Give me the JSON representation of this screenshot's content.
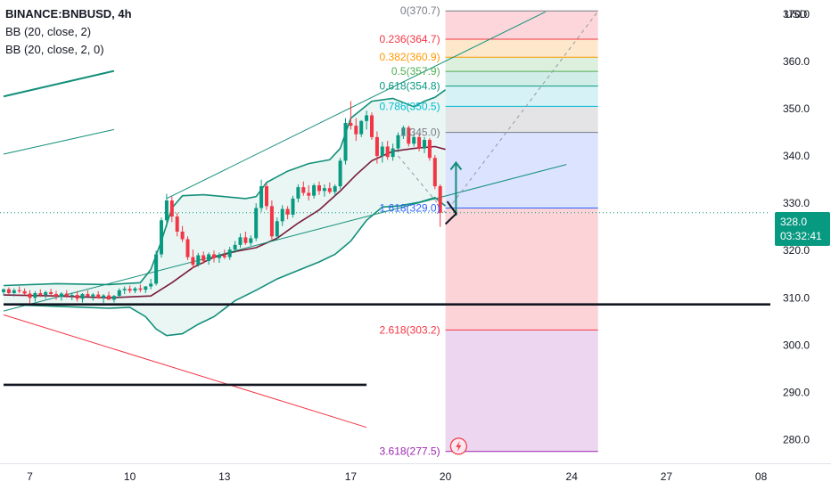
{
  "legend": {
    "symbol": "BINANCE:BNBUSD, 4h",
    "ind1": "BB (20, close, 2)",
    "ind2": "BB (20, close, 2, 0)"
  },
  "price_badge": {
    "price": "328.0",
    "countdown": "03:32:41",
    "color": "#089981"
  },
  "colors": {
    "up": "#089981",
    "down": "#f23645",
    "basis": "#7b1b3a",
    "band": "#138f7a",
    "fill": "#e5f4f1"
  },
  "chart_data": {
    "type": "candlestick",
    "y_unit": "USD",
    "ylim": [
      275,
      373
    ],
    "y_ticks": [
      280,
      290,
      300,
      310,
      320,
      330,
      340,
      350,
      360,
      370
    ],
    "y_tick_labels": [
      "280.0",
      "290.0",
      "300.0",
      "310.0",
      "320.0",
      "330.0",
      "340.0",
      "350.0",
      "360.0",
      "370.0"
    ],
    "x_ticks": [
      {
        "label": "7",
        "i": 5
      },
      {
        "label": "10",
        "i": 24
      },
      {
        "label": "13",
        "i": 42
      },
      {
        "label": "17",
        "i": 66
      },
      {
        "label": "20",
        "i": 84
      },
      {
        "label": "24",
        "i": 108
      },
      {
        "label": "27",
        "i": 126
      },
      {
        "label": "08",
        "i": 144
      }
    ],
    "x_index_range": [
      0,
      150
    ],
    "candles": [
      [
        311.2,
        312.0,
        310.5,
        311.8
      ],
      [
        311.8,
        312.2,
        310.8,
        311.0
      ],
      [
        311.0,
        312.0,
        310.3,
        311.6
      ],
      [
        311.6,
        312.4,
        311.0,
        311.4
      ],
      [
        311.4,
        312.0,
        310.6,
        310.9
      ],
      [
        310.9,
        311.6,
        308.8,
        310.0
      ],
      [
        310.0,
        311.4,
        309.2,
        311.0
      ],
      [
        311.0,
        311.8,
        310.2,
        310.6
      ],
      [
        310.6,
        311.5,
        309.8,
        311.2
      ],
      [
        311.2,
        311.9,
        310.4,
        310.8
      ],
      [
        310.8,
        311.5,
        309.6,
        310.2
      ],
      [
        310.2,
        311.2,
        309.4,
        310.9
      ],
      [
        310.9,
        311.6,
        310.0,
        310.4
      ],
      [
        310.4,
        311.1,
        309.5,
        310.6
      ],
      [
        310.6,
        311.4,
        309.2,
        309.8
      ],
      [
        309.8,
        311.0,
        309.0,
        310.8
      ],
      [
        310.8,
        311.6,
        310.2,
        310.3
      ],
      [
        310.3,
        311.0,
        309.4,
        310.7
      ],
      [
        310.7,
        311.4,
        309.8,
        310.0
      ],
      [
        310.0,
        310.8,
        308.9,
        310.5
      ],
      [
        310.5,
        311.3,
        309.7,
        309.6
      ],
      [
        309.6,
        310.6,
        309.0,
        310.4
      ],
      [
        310.4,
        312.0,
        310.0,
        311.6
      ],
      [
        311.6,
        312.4,
        310.8,
        311.9
      ],
      [
        311.9,
        312.6,
        311.0,
        311.5
      ],
      [
        311.5,
        312.3,
        311.0,
        312.0
      ],
      [
        312.0,
        312.8,
        311.2,
        311.7
      ],
      [
        311.7,
        312.5,
        311.0,
        312.4
      ],
      [
        312.4,
        314.0,
        311.8,
        313.0
      ],
      [
        313.0,
        320.0,
        312.6,
        319.2
      ],
      [
        319.2,
        327.0,
        318.5,
        326.4
      ],
      [
        326.4,
        332.0,
        325.0,
        330.6
      ],
      [
        330.6,
        331.4,
        326.0,
        327.2
      ],
      [
        327.2,
        328.0,
        323.0,
        324.0
      ],
      [
        324.0,
        325.2,
        321.8,
        322.4
      ],
      [
        322.4,
        323.0,
        318.0,
        318.6
      ],
      [
        318.6,
        320.2,
        316.2,
        317.0
      ],
      [
        317.0,
        319.5,
        316.6,
        319.0
      ],
      [
        319.0,
        319.8,
        317.2,
        317.8
      ],
      [
        317.8,
        319.6,
        317.0,
        319.2
      ],
      [
        319.2,
        320.0,
        317.5,
        318.4
      ],
      [
        318.4,
        319.6,
        317.4,
        319.0
      ],
      [
        319.0,
        320.2,
        318.2,
        318.6
      ],
      [
        318.6,
        320.8,
        318.0,
        320.2
      ],
      [
        320.2,
        322.0,
        319.5,
        321.2
      ],
      [
        321.2,
        323.6,
        320.6,
        322.8
      ],
      [
        322.8,
        324.0,
        321.2,
        321.6
      ],
      [
        321.6,
        323.2,
        321.0,
        322.6
      ],
      [
        322.6,
        330.0,
        322.0,
        329.0
      ],
      [
        329.0,
        335.0,
        328.2,
        333.6
      ],
      [
        333.6,
        334.2,
        328.6,
        329.4
      ],
      [
        329.4,
        330.6,
        322.4,
        323.0
      ],
      [
        323.0,
        327.0,
        322.2,
        326.2
      ],
      [
        326.2,
        329.6,
        325.2,
        328.8
      ],
      [
        328.8,
        329.4,
        326.6,
        327.6
      ],
      [
        327.6,
        331.6,
        327.0,
        331.0
      ],
      [
        331.0,
        334.0,
        330.2,
        333.4
      ],
      [
        333.4,
        334.6,
        331.6,
        332.2
      ],
      [
        332.2,
        333.8,
        330.6,
        331.6
      ],
      [
        331.6,
        334.2,
        331.0,
        333.8
      ],
      [
        333.8,
        334.6,
        331.8,
        332.6
      ],
      [
        332.6,
        334.0,
        331.4,
        333.2
      ],
      [
        333.2,
        334.4,
        332.0,
        332.4
      ],
      [
        332.4,
        334.0,
        331.6,
        333.6
      ],
      [
        333.6,
        339.6,
        333.0,
        339.0
      ],
      [
        339.0,
        348.0,
        338.2,
        347.0
      ],
      [
        347.0,
        351.6,
        345.6,
        346.4
      ],
      [
        346.4,
        348.0,
        343.2,
        344.6
      ],
      [
        344.6,
        347.6,
        344.0,
        347.4
      ],
      [
        347.4,
        349.6,
        345.6,
        348.6
      ],
      [
        348.6,
        349.2,
        343.4,
        344.0
      ],
      [
        344.0,
        345.2,
        338.4,
        340.0
      ],
      [
        340.0,
        343.0,
        338.6,
        342.0
      ],
      [
        342.0,
        343.2,
        339.2,
        339.8
      ],
      [
        339.8,
        342.6,
        339.0,
        341.6
      ],
      [
        341.6,
        345.0,
        340.8,
        344.4
      ],
      [
        344.4,
        346.4,
        343.6,
        346.0
      ],
      [
        346.0,
        346.4,
        342.0,
        342.6
      ],
      [
        342.6,
        344.8,
        342.0,
        344.0
      ],
      [
        344.0,
        344.6,
        341.0,
        341.6
      ],
      [
        341.6,
        344.0,
        340.6,
        343.4
      ],
      [
        343.4,
        343.8,
        339.0,
        339.6
      ],
      [
        339.6,
        340.2,
        333.0,
        333.6
      ],
      [
        333.6,
        334.0,
        325.0,
        328.0
      ]
    ],
    "bb_basis": [
      [
        0,
        310.6
      ],
      [
        10,
        310.4
      ],
      [
        20,
        310.0
      ],
      [
        28,
        310.4
      ],
      [
        32,
        313.2
      ],
      [
        36,
        316.4
      ],
      [
        40,
        318.6
      ],
      [
        44,
        319.8
      ],
      [
        48,
        320.6
      ],
      [
        52,
        322.6
      ],
      [
        56,
        325.8
      ],
      [
        60,
        328.6
      ],
      [
        64,
        332.6
      ],
      [
        67,
        336.0
      ],
      [
        70,
        339.0
      ],
      [
        74,
        341.0
      ],
      [
        78,
        341.6
      ],
      [
        82,
        342.0
      ],
      [
        84,
        341.4
      ]
    ],
    "bb_upper": [
      [
        0,
        312.6
      ],
      [
        10,
        313.0
      ],
      [
        20,
        312.8
      ],
      [
        26,
        313.2
      ],
      [
        28,
        316.0
      ],
      [
        30,
        322.0
      ],
      [
        32,
        329.0
      ],
      [
        34,
        331.6
      ],
      [
        38,
        331.8
      ],
      [
        42,
        331.4
      ],
      [
        46,
        331.0
      ],
      [
        48,
        331.4
      ],
      [
        50,
        334.4
      ],
      [
        54,
        336.8
      ],
      [
        58,
        338.4
      ],
      [
        62,
        339.2
      ],
      [
        64,
        341.6
      ],
      [
        66,
        348.0
      ],
      [
        70,
        351.6
      ],
      [
        74,
        352.2
      ],
      [
        78,
        350.4
      ],
      [
        80,
        351.6
      ],
      [
        82,
        352.4
      ],
      [
        84,
        354.0
      ]
    ],
    "bb_lower": [
      [
        0,
        308.6
      ],
      [
        10,
        308.2
      ],
      [
        20,
        307.8
      ],
      [
        24,
        308.0
      ],
      [
        27,
        306.0
      ],
      [
        29,
        303.4
      ],
      [
        31,
        302.0
      ],
      [
        34,
        302.4
      ],
      [
        37,
        304.4
      ],
      [
        40,
        306.0
      ],
      [
        44,
        309.4
      ],
      [
        48,
        311.6
      ],
      [
        52,
        314.0
      ],
      [
        56,
        315.8
      ],
      [
        60,
        317.6
      ],
      [
        63,
        319.2
      ],
      [
        66,
        322.0
      ],
      [
        69,
        326.4
      ],
      [
        72,
        329.2
      ],
      [
        75,
        329.4
      ],
      [
        79,
        330.2
      ],
      [
        82,
        331.2
      ],
      [
        84,
        329.4
      ]
    ],
    "fibonacci": {
      "x_start_i": 84,
      "x_end_i": 113,
      "levels": [
        {
          "ratio": "0",
          "price": 370.7,
          "label": "0(370.7)",
          "color": "#787b86",
          "fill": "#ffffff"
        },
        {
          "ratio": "0.236",
          "price": 364.7,
          "label": "0.236(364.7)",
          "color": "#f23645",
          "fill": "#fcd6da"
        },
        {
          "ratio": "0.382",
          "price": 360.9,
          "label": "0.382(360.9)",
          "color": "#ff9800",
          "fill": "#fde8cc"
        },
        {
          "ratio": "0.5",
          "price": 357.9,
          "label": "0.5(357.9)",
          "color": "#4caf50",
          "fill": "#ddf0de"
        },
        {
          "ratio": "0.618",
          "price": 354.8,
          "label": "0.618(354.8)",
          "color": "#089981",
          "fill": "#d1ede8"
        },
        {
          "ratio": "0.786",
          "price": 350.5,
          "label": "0.786(350.5)",
          "color": "#00bcd4",
          "fill": "#d6f2f6"
        },
        {
          "ratio": "1",
          "price": 345.0,
          "label": "1(345.0)",
          "color": "#787b86",
          "fill": "#e4e4e6"
        },
        {
          "ratio": "1.618",
          "price": 329.0,
          "label": "1.618(329.0)",
          "color": "#2962ff",
          "fill": "#dbe3ff"
        },
        {
          "ratio": "2.618",
          "price": 303.2,
          "label": "2.618(303.2)",
          "color": "#f23645",
          "fill": "#fcd4d8"
        },
        {
          "ratio": "3.618",
          "price": 277.5,
          "label": "3.618(277.5)",
          "color": "#9c27b0",
          "fill": "#edd6f0"
        }
      ]
    },
    "trendlines": [
      {
        "name": "channel-top",
        "p1": [
          31,
          331.0
        ],
        "p2": [
          103,
          370.5
        ],
        "color": "#138f7a"
      },
      {
        "name": "channel-bottom",
        "p1": [
          0,
          307.2
        ],
        "p2": [
          107,
          338.2
        ],
        "color": "#138f7a"
      },
      {
        "name": "upper-left-thick",
        "p1": [
          0,
          352.6
        ],
        "p2": [
          21,
          358.0
        ],
        "color": "#138f7a"
      },
      {
        "name": "upper-left-thin",
        "p1": [
          0,
          340.4
        ],
        "p2": [
          21,
          345.6
        ],
        "color": "#138f7a"
      },
      {
        "name": "falling-red",
        "p1": [
          0,
          306.4
        ],
        "p2": [
          69,
          282.6
        ],
        "color": "#f23645"
      }
    ],
    "horizontal_lines": [
      {
        "name": "support-310",
        "price": 308.6,
        "i_start": 0,
        "i_end": 150
      },
      {
        "name": "support-292",
        "price": 291.6,
        "i_start": 0,
        "i_end": 69
      }
    ],
    "dotted_path": [
      [
        75,
        340.0
      ],
      [
        84,
        328.0
      ],
      [
        113,
        370.6
      ]
    ]
  }
}
